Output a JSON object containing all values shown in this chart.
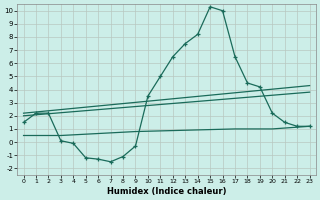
{
  "xlabel": "Humidex (Indice chaleur)",
  "bg_color": "#cceee8",
  "line_color": "#1a6b5a",
  "grid_color": "#b8c8c0",
  "xlim": [
    -0.5,
    23.5
  ],
  "ylim": [
    -2.5,
    10.5
  ],
  "xticks": [
    0,
    1,
    2,
    3,
    4,
    5,
    6,
    7,
    8,
    9,
    10,
    11,
    12,
    13,
    14,
    15,
    16,
    17,
    18,
    19,
    20,
    21,
    22,
    23
  ],
  "yticks": [
    -2,
    -1,
    0,
    1,
    2,
    3,
    4,
    5,
    6,
    7,
    8,
    9,
    10
  ],
  "line1_x": [
    0,
    1,
    2,
    3,
    4,
    5,
    6,
    7,
    8,
    9,
    10,
    11,
    12,
    13,
    14,
    15,
    16,
    17,
    18,
    19,
    20,
    21,
    22,
    23
  ],
  "line1_y": [
    1.5,
    2.2,
    2.2,
    0.1,
    -0.1,
    -1.2,
    -1.3,
    -1.5,
    -1.1,
    -0.3,
    3.5,
    5.0,
    6.5,
    7.5,
    8.2,
    10.3,
    10.0,
    6.5,
    4.5,
    4.2,
    2.2,
    1.5,
    1.2,
    1.2
  ],
  "line2_x": [
    0,
    23
  ],
  "line2_y": [
    2.2,
    4.3
  ],
  "line3_x": [
    0,
    23
  ],
  "line3_y": [
    2.0,
    3.8
  ],
  "line4_x": [
    0,
    3,
    9,
    17,
    20,
    23
  ],
  "line4_y": [
    0.5,
    0.5,
    0.8,
    1.0,
    1.0,
    1.2
  ]
}
